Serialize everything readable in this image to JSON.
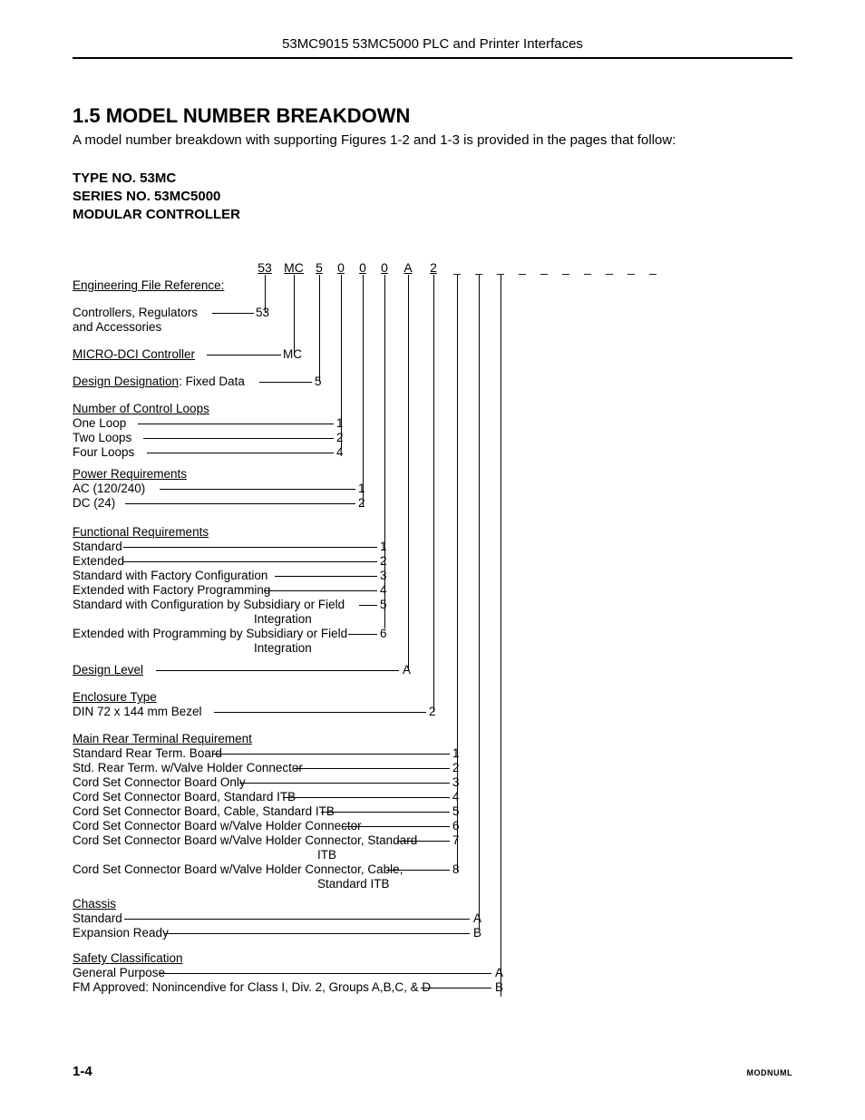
{
  "header": "53MC9015   53MC5000 PLC and Printer Interfaces",
  "title": "1.5  MODEL NUMBER BREAKDOWN",
  "intro": "A model number breakdown with supporting Figures 1-2 and 1-3 is provided in the pages that follow:",
  "type_line1": "TYPE NO. 53MC",
  "type_line2": "SERIES NO. 53MC5000",
  "type_line3": "MODULAR CONTROLLER",
  "positions": [
    "53",
    "MC",
    "5",
    "0",
    "0",
    "0",
    "A",
    "2",
    "_",
    "_",
    "_",
    "_",
    "_",
    "_",
    "_",
    "_",
    "_",
    "_"
  ],
  "eng_ref": "Engineering File Reference:",
  "s1_label": "Controllers, Regulators",
  "s1_sub": "and Accessories",
  "s1_code": "53",
  "s2_label": "MICRO-DCI Controller",
  "s2_code": "MC",
  "s3_label": "Design Designation: Fixed Data",
  "s3_label_ul": "Design Designation",
  "s3_rest": ": Fixed Data",
  "s3_code": "5",
  "s4_header": "Number of Control Loops",
  "s4_items": [
    {
      "label": "One Loop",
      "code": "1"
    },
    {
      "label": "Two Loops",
      "code": "2"
    },
    {
      "label": "Four Loops",
      "code": "4"
    }
  ],
  "s5_header": "Power Requirements",
  "s5_items": [
    {
      "label": "AC (120/240)",
      "code": "1"
    },
    {
      "label": "DC (24)",
      "code": "2"
    }
  ],
  "s6_header": "Functional Requirements",
  "s6_items": [
    {
      "label": "Standard",
      "code": "1"
    },
    {
      "label": "Extended",
      "code": "2"
    },
    {
      "label": "Standard with Factory Configuration",
      "code": "3"
    },
    {
      "label": "Extended with Factory Programming",
      "code": "4"
    },
    {
      "label": "Standard with Configuration by Subsidiary or Field",
      "sub": "Integration",
      "code": "5"
    },
    {
      "label": "Extended with Programming by Subsidiary or Field",
      "sub": "Integration",
      "code": "6"
    }
  ],
  "s7_label": "Design Level",
  "s7_code": "A",
  "s8_header": "Enclosure Type",
  "s8_label": "DIN 72 x 144 mm Bezel",
  "s8_code": "2",
  "s9_header": "Main Rear Terminal Requirement",
  "s9_items": [
    {
      "label": "Standard Rear Term. Board",
      "code": "1"
    },
    {
      "label": "Std. Rear Term. w/Valve Holder Connector",
      "code": "2"
    },
    {
      "label": "Cord Set Connector Board  Only",
      "code": "3"
    },
    {
      "label": "Cord Set Connector Board, Standard ITB",
      "code": "4"
    },
    {
      "label": "Cord Set Connector Board, Cable, Standard ITB",
      "code": "5"
    },
    {
      "label": "Cord Set Connector Board w/Valve Holder Connector",
      "code": "6"
    },
    {
      "label": "Cord Set Connector Board w/Valve Holder Connector, Standard",
      "sub": "ITB",
      "code": "7"
    },
    {
      "label": "Cord Set Connector Board w/Valve Holder Connector, Cable,",
      "sub": "Standard ITB",
      "code": "8"
    }
  ],
  "s10_header": "Chassis",
  "s10_items": [
    {
      "label": "Standard",
      "code": "A"
    },
    {
      "label": "Expansion Ready",
      "code": "B"
    }
  ],
  "s11_header": "Safety Classification",
  "s11_items": [
    {
      "label": "General Purpose",
      "code": "A"
    },
    {
      "label": "FM Approved: Nonincendive for Class I, Div. 2, Groups A,B,C, & D",
      "code": "B"
    }
  ],
  "footer_page": "1-4",
  "footer_code": "MODNUML"
}
